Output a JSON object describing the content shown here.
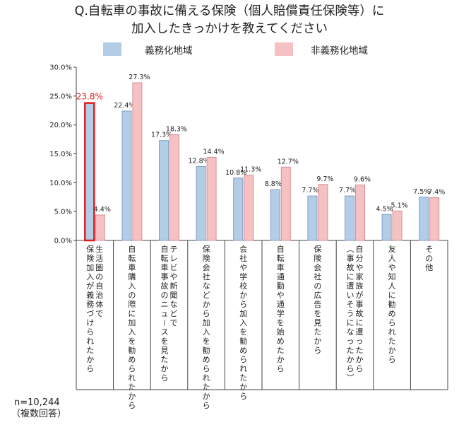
{
  "title_line1": "Q.自転車の事故に備える保険（個人賠償責任保険等）に",
  "title_line2": "加入したきっかけを教えてください",
  "legend": [
    {
      "name": "義務化地域",
      "color": "#b3cde6",
      "border": "#7f9fc4"
    },
    {
      "name": "非義務化地域",
      "color": "#f6c1c3",
      "border": "#d98e93"
    }
  ],
  "highlight_color": "#e02020",
  "highlight_index": 0,
  "footnote_n": "n=10,244",
  "footnote_multi": "（複数回答）",
  "chart_data": {
    "type": "bar",
    "ylim": [
      0,
      30
    ],
    "yticks": [
      "0.0%",
      "5.0%",
      "10.0%",
      "15.0%",
      "20.0%",
      "25.0%",
      "30.0%"
    ],
    "categories": [
      "生活圏の自治体で保険加入が義務づけられたから",
      "自転車購入の際に加入を勧められたから",
      "テレビや新聞などで自転車事故のニュースを見たから",
      "保険会社などから加入を勧められたから",
      "会社や学校から加入を勧められたから",
      "自転車通勤や通学を始めたから",
      "保険会社の広告を見たから",
      "自分や家族が事故に遭ったから（事故に遭いそうになったから）",
      "友人や知人に勧められたから",
      "その他"
    ],
    "category_columns": [
      [
        "生活圏の自治体で",
        "保険加入が義務づけられたから"
      ],
      [
        "自転車購入の際に加入を勧められたから"
      ],
      [
        "テレビや新聞などで",
        "自転車事故のニュースを見たから"
      ],
      [
        "保険会社などから加入を勧められたから"
      ],
      [
        "会社や学校から加入を勧められたから"
      ],
      [
        "自転車通勤や通学を始めたから"
      ],
      [
        "保険会社の広告を見たから"
      ],
      [
        "自分や家族が事故に遭ったから",
        "（事故に遭いそうになったから）"
      ],
      [
        "友人や知人に勧められたから"
      ],
      [
        "その他"
      ]
    ],
    "series": [
      {
        "name": "義務化地域",
        "values": [
          23.8,
          22.4,
          17.3,
          12.8,
          10.8,
          8.8,
          7.7,
          7.7,
          4.5,
          7.5
        ],
        "labels": [
          "23.8%",
          "22.4%",
          "17.3%",
          "12.8%",
          "10.8%",
          "8.8%",
          "7.7%",
          "7.7%",
          "4.5%",
          "7.5%"
        ]
      },
      {
        "name": "非義務化地域",
        "values": [
          4.4,
          27.3,
          18.3,
          14.4,
          11.3,
          12.7,
          9.7,
          9.6,
          5.1,
          7.4
        ],
        "labels": [
          "4.4%",
          "27.3%",
          "18.3%",
          "14.4%",
          "11.3%",
          "12.7%",
          "9.7%",
          "9.6%",
          "5.1%",
          "7.4%"
        ]
      }
    ]
  }
}
